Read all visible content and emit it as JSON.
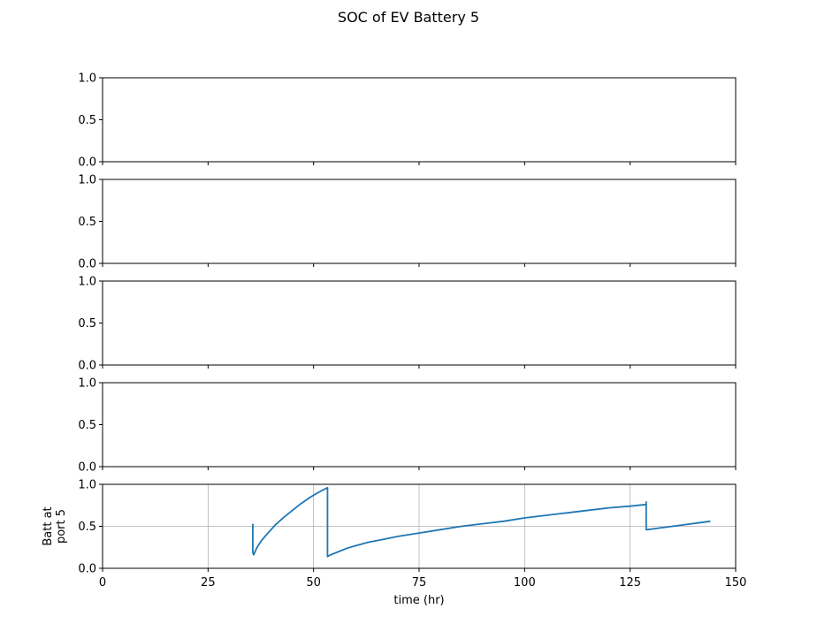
{
  "figure": {
    "title": "SOC of EV Battery 5"
  },
  "chart_data": [
    {
      "type": "line",
      "title": "",
      "xlabel": "",
      "ylabel": "",
      "xlim": [
        0,
        150
      ],
      "ylim": [
        0,
        1
      ],
      "xticks": [
        0,
        25,
        50,
        75,
        100,
        125,
        150
      ],
      "xtick_labels_shown": false,
      "yticks": [
        "0.0",
        "0.5",
        "1.0"
      ],
      "grid": false,
      "series": []
    },
    {
      "type": "line",
      "title": "",
      "xlabel": "",
      "ylabel": "",
      "xlim": [
        0,
        150
      ],
      "ylim": [
        0,
        1
      ],
      "xticks": [
        0,
        25,
        50,
        75,
        100,
        125,
        150
      ],
      "xtick_labels_shown": false,
      "yticks": [
        "0.0",
        "0.5",
        "1.0"
      ],
      "grid": false,
      "series": []
    },
    {
      "type": "line",
      "title": "",
      "xlabel": "",
      "ylabel": "",
      "xlim": [
        0,
        150
      ],
      "ylim": [
        0,
        1
      ],
      "xticks": [
        0,
        25,
        50,
        75,
        100,
        125,
        150
      ],
      "xtick_labels_shown": false,
      "yticks": [
        "0.0",
        "0.5",
        "1.0"
      ],
      "grid": false,
      "series": []
    },
    {
      "type": "line",
      "title": "",
      "xlabel": "",
      "ylabel": "",
      "xlim": [
        0,
        150
      ],
      "ylim": [
        0,
        1
      ],
      "xticks": [
        0,
        25,
        50,
        75,
        100,
        125,
        150
      ],
      "xtick_labels_shown": false,
      "yticks": [
        "0.0",
        "0.5",
        "1.0"
      ],
      "grid": false,
      "series": []
    },
    {
      "type": "line",
      "title": "",
      "xlabel": "time (hr)",
      "ylabel": [
        "Batt at",
        "port 5"
      ],
      "xlim": [
        0,
        150
      ],
      "ylim": [
        0,
        1
      ],
      "xticks": [
        0,
        25,
        50,
        75,
        100,
        125,
        150
      ],
      "xtick_labels_shown": true,
      "yticks": [
        "0.0",
        "0.5",
        "1.0"
      ],
      "grid": true,
      "series": [
        {
          "color": "#1f77b4",
          "x": [
            35.6,
            35.6,
            35.8,
            36.5,
            37.5,
            39,
            41,
            43,
            45,
            47,
            49,
            51,
            53.3,
            53.3,
            54,
            56,
            58,
            60,
            63,
            66,
            70,
            75,
            80,
            85,
            90,
            95,
            100,
            105,
            110,
            115,
            120,
            125,
            128.8,
            128.8,
            128.8,
            129,
            132,
            135,
            138,
            141,
            144
          ],
          "y": [
            0.53,
            0.19,
            0.16,
            0.24,
            0.32,
            0.41,
            0.52,
            0.61,
            0.69,
            0.77,
            0.84,
            0.9,
            0.96,
            0.14,
            0.16,
            0.2,
            0.24,
            0.27,
            0.31,
            0.34,
            0.38,
            0.42,
            0.46,
            0.5,
            0.53,
            0.56,
            0.6,
            0.63,
            0.66,
            0.69,
            0.72,
            0.74,
            0.76,
            0.79,
            0.46,
            0.46,
            0.48,
            0.5,
            0.52,
            0.54,
            0.56
          ]
        }
      ]
    }
  ]
}
